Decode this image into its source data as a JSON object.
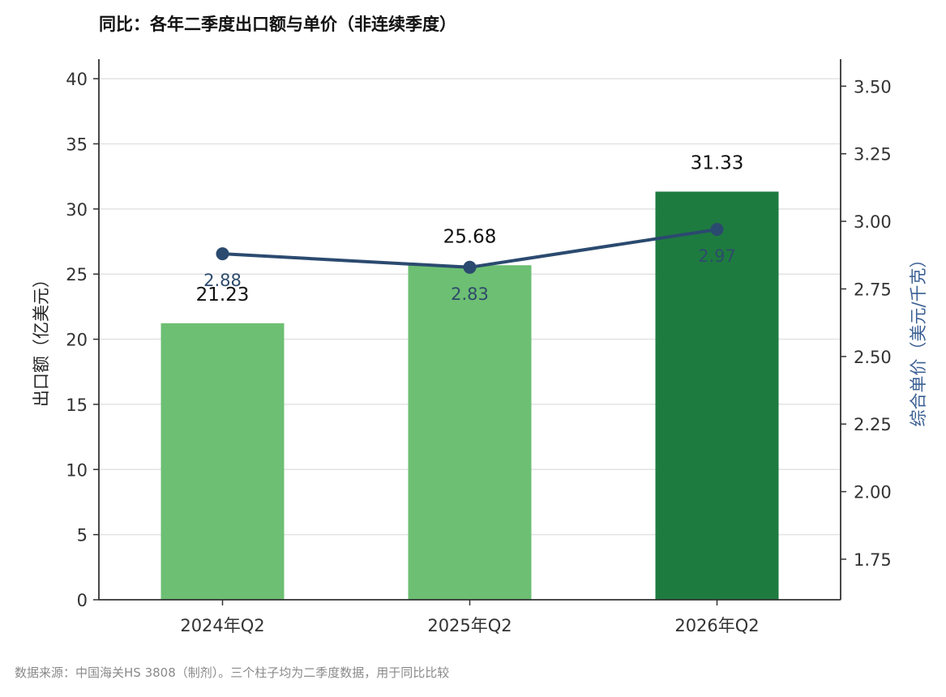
{
  "title": "同比：各年二季度出口额与单价（非连续季度）",
  "footnote": "数据来源：中国海关HS 3808（制剂）。三个柱子均为二季度数据，用于同比比较",
  "chart_data": {
    "type": "bar",
    "categories": [
      "2024年Q2",
      "2025年Q2",
      "2026年Q2"
    ],
    "series": [
      {
        "type": "bar",
        "axis": "left",
        "values": [
          21.23,
          25.68,
          31.33
        ],
        "labels": [
          "21.23",
          "25.68",
          "31.33"
        ],
        "colors": [
          "#6dbf73",
          "#6dbf73",
          "#1e7b3f"
        ]
      },
      {
        "type": "line",
        "axis": "right",
        "values": [
          2.88,
          2.83,
          2.97
        ],
        "labels": [
          "2.88",
          "2.83",
          "2.97"
        ],
        "color": "#2b4a6f"
      }
    ],
    "y_left": {
      "label": "出口额（亿美元）",
      "range": [
        0,
        41.5
      ],
      "ticks": [
        0,
        5,
        10,
        15,
        20,
        25,
        30,
        35,
        40
      ],
      "tick_labels": [
        "0",
        "5",
        "10",
        "15",
        "20",
        "25",
        "30",
        "35",
        "40"
      ]
    },
    "y_right": {
      "label": "综合单价（美元/千克）",
      "range": [
        1.6,
        3.6
      ],
      "ticks": [
        1.75,
        2.0,
        2.25,
        2.5,
        2.75,
        3.0,
        3.25,
        3.5
      ],
      "tick_labels": [
        "1.75",
        "2.00",
        "2.25",
        "2.50",
        "2.75",
        "3.00",
        "3.25",
        "3.50"
      ]
    },
    "grid": "horizontal",
    "legend": "none"
  }
}
